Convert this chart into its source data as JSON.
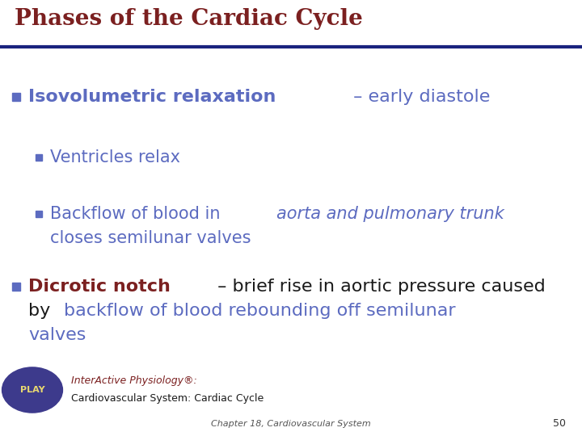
{
  "title": "Phases of the Cardiac Cycle",
  "title_color": "#7B2020",
  "title_fontsize": 20,
  "bg_color": "#FFFFFF",
  "header_line_color": "#1A237E",
  "bullet1_color": "#5C6BC0",
  "bullet2_color": "#5C6BC0",
  "text_blue": "#5C6BC0",
  "text_black": "#1A1A1A",
  "dicrotic_red": "#7B2020",
  "play_bg_color": "#3D3A8C",
  "play_text_color": "#E8D870",
  "play_label_italic_color": "#7B2020",
  "play_label_normal_color": "#1A1A1A",
  "footer_color": "#555555",
  "page_num_color": "#333333",
  "footer_chapter": "Chapter 18, Cardiovascular System",
  "page_number": "50"
}
